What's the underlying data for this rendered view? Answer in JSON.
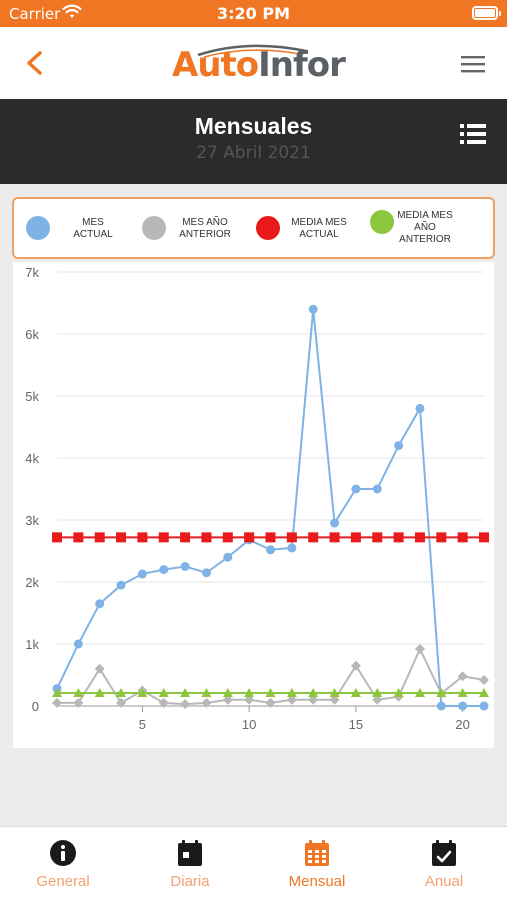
{
  "status": {
    "carrier": "Carrier",
    "time": "3:20 PM"
  },
  "nav": {
    "logo_part1": "Auto",
    "logo_part2": "Infor"
  },
  "header": {
    "title": "Mensuales",
    "subtitle": "27 Abril 2021"
  },
  "colors": {
    "accent": "#f07623",
    "mes_actual": "#7fb3e6",
    "mes_ano_anterior": "#b8b8b8",
    "media_mes_actual": "#e81a1a",
    "media_mes_ano_anterior": "#8cc63f"
  },
  "legend": [
    {
      "label_l1": "MES",
      "label_l2": "ACTUAL",
      "label_l3": "",
      "color": "#7fb3e6"
    },
    {
      "label_l1": "MES AÑO",
      "label_l2": "ANTERIOR",
      "label_l3": "",
      "color": "#b8b8b8"
    },
    {
      "label_l1": "MEDIA MES",
      "label_l2": "ACTUAL",
      "label_l3": "",
      "color": "#e81a1a"
    },
    {
      "label_l1": "MEDIA MES",
      "label_l2": "AÑO",
      "label_l3": "ANTERIOR",
      "color": "#8cc63f"
    }
  ],
  "chart_data": {
    "type": "line",
    "title": "",
    "xlabel": "",
    "ylabel": "",
    "x": [
      1,
      2,
      3,
      4,
      5,
      6,
      7,
      8,
      9,
      10,
      11,
      12,
      13,
      14,
      15,
      16,
      17,
      18,
      19,
      20,
      21
    ],
    "xticks": [
      "5",
      "10",
      "15",
      "20"
    ],
    "xtick_values": [
      5,
      10,
      15,
      20
    ],
    "yticks": [
      "0",
      "1k",
      "2k",
      "3k",
      "4k",
      "5k",
      "6k",
      "7k"
    ],
    "ylim": [
      0,
      7000
    ],
    "xlim": [
      1,
      21
    ],
    "grid": true,
    "series": [
      {
        "name": "MES ACTUAL",
        "marker": "circle",
        "color": "#7fb3e6",
        "values": [
          280,
          1000,
          1650,
          1950,
          2130,
          2200,
          2250,
          2150,
          2400,
          2680,
          2520,
          2550,
          6400,
          2950,
          3500,
          3500,
          4200,
          4800,
          0,
          0,
          0
        ]
      },
      {
        "name": "MES AÑO ANTERIOR",
        "marker": "diamond",
        "color": "#b8b8b8",
        "values": [
          50,
          50,
          600,
          50,
          250,
          50,
          30,
          50,
          100,
          100,
          50,
          100,
          100,
          100,
          650,
          100,
          150,
          920,
          200,
          480,
          420
        ]
      },
      {
        "name": "MEDIA MES ACTUAL",
        "marker": "square",
        "color": "#e81a1a",
        "values": [
          2720,
          2720,
          2720,
          2720,
          2720,
          2720,
          2720,
          2720,
          2720,
          2720,
          2720,
          2720,
          2720,
          2720,
          2720,
          2720,
          2720,
          2720,
          2720,
          2720,
          2720
        ]
      },
      {
        "name": "MEDIA MES AÑO ANTERIOR",
        "marker": "triangle",
        "color": "#8cc63f",
        "values": [
          210,
          210,
          210,
          210,
          210,
          210,
          210,
          210,
          210,
          210,
          210,
          210,
          210,
          210,
          210,
          210,
          210,
          210,
          210,
          210,
          210
        ]
      }
    ]
  },
  "tabs": [
    {
      "label": "General",
      "icon": "info-circle-icon"
    },
    {
      "label": "Diaria",
      "icon": "calendar-day-icon"
    },
    {
      "label": "Mensual",
      "icon": "calendar-grid-icon",
      "active": true
    },
    {
      "label": "Anual",
      "icon": "calendar-check-icon"
    }
  ]
}
